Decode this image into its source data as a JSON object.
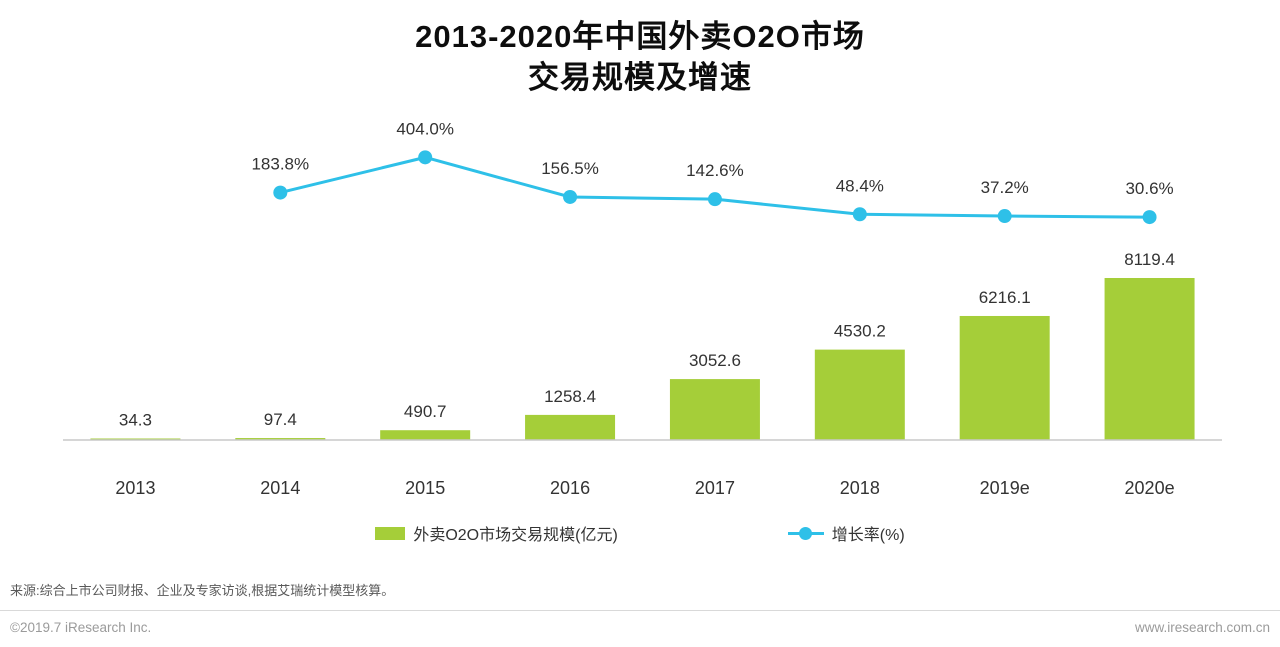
{
  "title": {
    "line1": "2013-2020年中国外卖O2O市场",
    "line2": "交易规模及增速"
  },
  "chart_data": {
    "type": "bar+line combo",
    "categories": [
      "2013",
      "2014",
      "2015",
      "2016",
      "2017",
      "2018",
      "2019e",
      "2020e"
    ],
    "series": [
      {
        "name": "外卖O2O市场交易规模(亿元)",
        "type": "bar",
        "color": "#a5ce39",
        "values": [
          34.3,
          97.4,
          490.7,
          1258.4,
          3052.6,
          4530.2,
          6216.1,
          8119.4
        ],
        "labels": [
          "34.3",
          "97.4",
          "490.7",
          "1258.4",
          "3052.6",
          "4530.2",
          "6216.1",
          "8119.4"
        ]
      },
      {
        "name": "增长率(%)",
        "type": "line",
        "color": "#2ec0e8",
        "values": [
          null,
          183.8,
          404.0,
          156.5,
          142.6,
          48.4,
          37.2,
          30.6
        ],
        "labels": [
          null,
          "183.8%",
          "404.0%",
          "156.5%",
          "142.6%",
          "48.4%",
          "37.2%",
          "30.6%"
        ]
      }
    ],
    "ylim_bar": [
      0,
      8119.4
    ],
    "ylim_line_percent": [
      0,
      404.0
    ],
    "grid": false,
    "legend_position": "bottom",
    "xlabel": "",
    "ylabel": ""
  },
  "legend": {
    "bar_label": "外卖O2O市场交易规模(亿元)",
    "line_label": "增长率(%)"
  },
  "source": "来源:综合上市公司财报、企业及专家访谈,根据艾瑞统计模型核算。",
  "footer": {
    "left": "©2019.7 iResearch Inc.",
    "right": "www.iresearch.com.cn"
  }
}
